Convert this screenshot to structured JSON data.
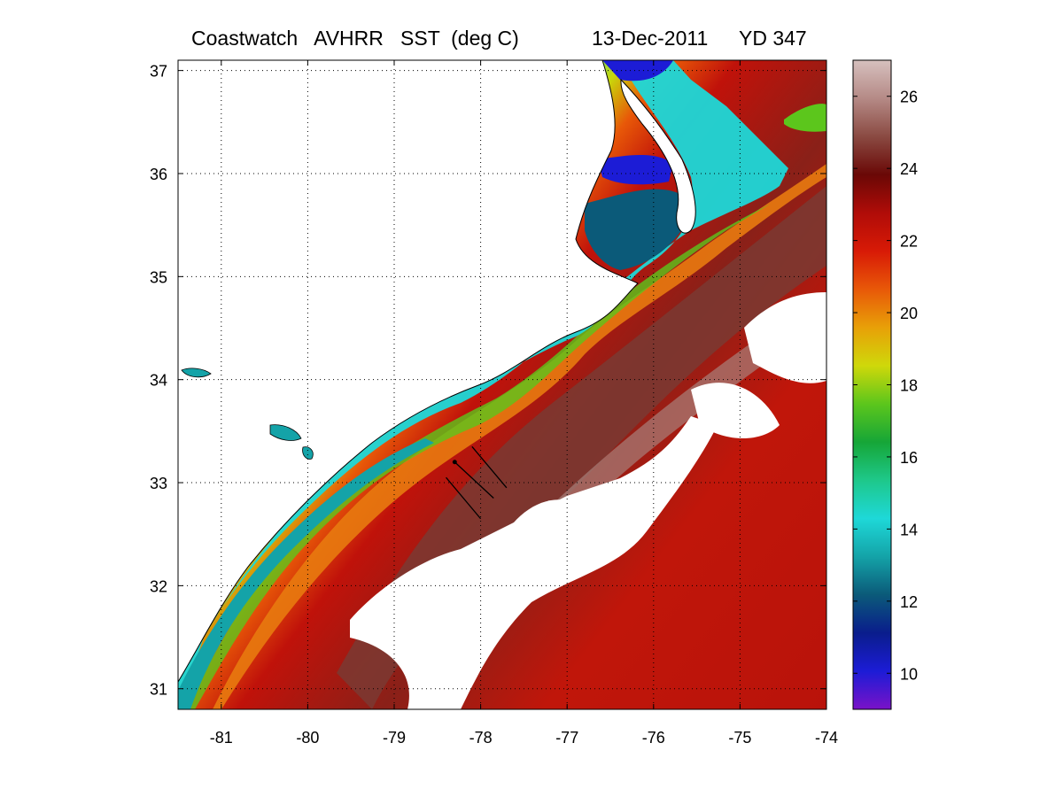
{
  "title": {
    "product": "Coastwatch   AVHRR   SST  (deg C)",
    "date": "13-Dec-2011",
    "yearday": "YD 347"
  },
  "map": {
    "lon_range": [
      -81.5,
      -74
    ],
    "lat_range": [
      30.8,
      37.1
    ],
    "lon_ticks": [
      "-81",
      "-80",
      "-79",
      "-78",
      "-77",
      "-76",
      "-75",
      "-74"
    ],
    "lat_ticks": [
      "31",
      "32",
      "33",
      "34",
      "35",
      "36",
      "37"
    ],
    "grid": "dotted",
    "land_color": "#ffffff",
    "cloud_color": "#ffffff",
    "coastline_color": "#000000"
  },
  "colorbar": {
    "range": [
      9,
      27
    ],
    "ticks": [
      "10",
      "12",
      "14",
      "16",
      "18",
      "20",
      "22",
      "24",
      "26"
    ],
    "stops": [
      "#7a12c8",
      "#1c1cd6",
      "#0a1d8c",
      "#0b5a79",
      "#14a3a8",
      "#1ed8d8",
      "#1ec88a",
      "#16a637",
      "#5cc61c",
      "#cfd80a",
      "#e8a008",
      "#e85808",
      "#d81a06",
      "#b00c08",
      "#6a0806",
      "#8a4a42",
      "#b58a86",
      "#d6c0be"
    ]
  },
  "transects": [
    {
      "start": [
        -78.4,
        33.05
      ],
      "end": [
        -78.0,
        32.65
      ]
    },
    {
      "start": [
        -78.3,
        33.2
      ],
      "end": [
        -77.85,
        32.85
      ]
    },
    {
      "start": [
        -78.1,
        33.35
      ],
      "end": [
        -77.7,
        32.95
      ]
    }
  ]
}
